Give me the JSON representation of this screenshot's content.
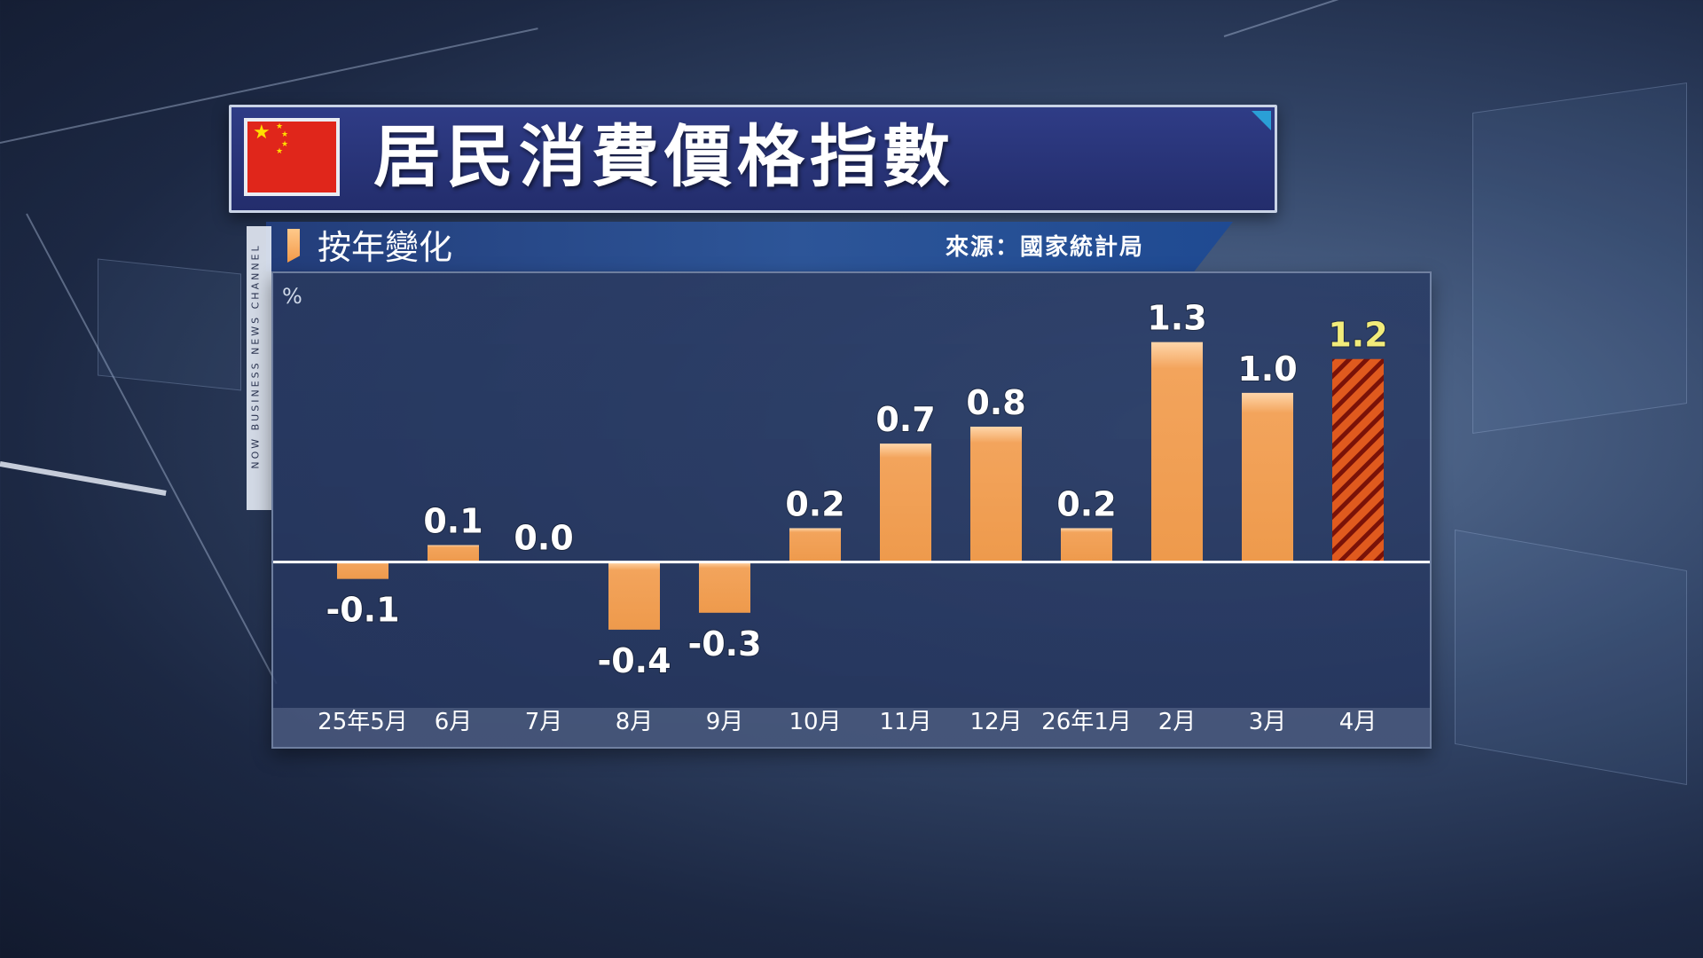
{
  "header": {
    "title": "居民消費價格指數",
    "subtitle": "按年變化",
    "source": "來源：國家統計局",
    "side_strip": "NOW BUSINESS NEWS CHANNEL"
  },
  "chart_data": {
    "type": "bar",
    "title": "居民消費價格指數",
    "subtitle": "按年變化",
    "xlabel": "",
    "ylabel": "%",
    "categories": [
      "25年5月",
      "6月",
      "7月",
      "8月",
      "9月",
      "10月",
      "11月",
      "12月",
      "26年1月",
      "2月",
      "3月",
      "4月"
    ],
    "values": [
      -0.1,
      0.1,
      0.0,
      -0.4,
      -0.3,
      0.2,
      0.7,
      0.8,
      0.2,
      1.3,
      1.0,
      1.2
    ],
    "value_labels": [
      "-0.1",
      "0.1",
      "0.0",
      "-0.4",
      "-0.3",
      "0.2",
      "0.7",
      "0.8",
      "0.2",
      "1.3",
      "1.0",
      "1.2"
    ],
    "highlight_index": 11,
    "ylim": [
      -0.6,
      1.55
    ],
    "grid": false,
    "colors": {
      "bar": "#f0a055",
      "bar_light": "#ffd0a0",
      "highlight_bar": "#e05a1e",
      "highlight_stripe": "#7a1208",
      "highlight_label": "#f2ec7a",
      "label": "#ffffff",
      "zero_line": "#ffffff"
    }
  }
}
